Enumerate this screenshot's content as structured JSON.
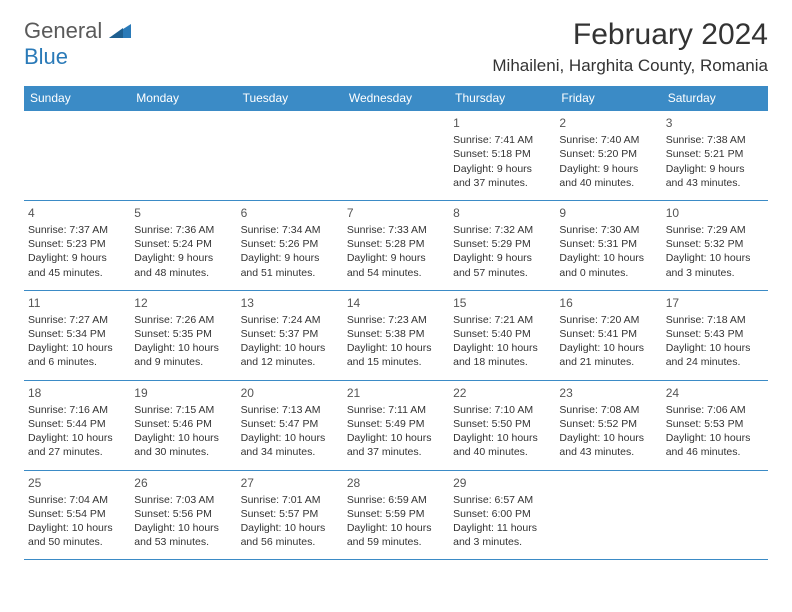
{
  "logo": {
    "word1": "General",
    "word2": "Blue"
  },
  "title": "February 2024",
  "location": "Mihaileni, Harghita County, Romania",
  "colors": {
    "header_bg": "#3b8bc6",
    "border": "#3b8bc6",
    "logo_gray": "#5a5a5a",
    "logo_blue": "#2a7ab8"
  },
  "weekdays": [
    "Sunday",
    "Monday",
    "Tuesday",
    "Wednesday",
    "Thursday",
    "Friday",
    "Saturday"
  ],
  "weeks": [
    [
      null,
      null,
      null,
      null,
      {
        "n": "1",
        "sr": "Sunrise: 7:41 AM",
        "ss": "Sunset: 5:18 PM",
        "d1": "Daylight: 9 hours",
        "d2": "and 37 minutes."
      },
      {
        "n": "2",
        "sr": "Sunrise: 7:40 AM",
        "ss": "Sunset: 5:20 PM",
        "d1": "Daylight: 9 hours",
        "d2": "and 40 minutes."
      },
      {
        "n": "3",
        "sr": "Sunrise: 7:38 AM",
        "ss": "Sunset: 5:21 PM",
        "d1": "Daylight: 9 hours",
        "d2": "and 43 minutes."
      }
    ],
    [
      {
        "n": "4",
        "sr": "Sunrise: 7:37 AM",
        "ss": "Sunset: 5:23 PM",
        "d1": "Daylight: 9 hours",
        "d2": "and 45 minutes."
      },
      {
        "n": "5",
        "sr": "Sunrise: 7:36 AM",
        "ss": "Sunset: 5:24 PM",
        "d1": "Daylight: 9 hours",
        "d2": "and 48 minutes."
      },
      {
        "n": "6",
        "sr": "Sunrise: 7:34 AM",
        "ss": "Sunset: 5:26 PM",
        "d1": "Daylight: 9 hours",
        "d2": "and 51 minutes."
      },
      {
        "n": "7",
        "sr": "Sunrise: 7:33 AM",
        "ss": "Sunset: 5:28 PM",
        "d1": "Daylight: 9 hours",
        "d2": "and 54 minutes."
      },
      {
        "n": "8",
        "sr": "Sunrise: 7:32 AM",
        "ss": "Sunset: 5:29 PM",
        "d1": "Daylight: 9 hours",
        "d2": "and 57 minutes."
      },
      {
        "n": "9",
        "sr": "Sunrise: 7:30 AM",
        "ss": "Sunset: 5:31 PM",
        "d1": "Daylight: 10 hours",
        "d2": "and 0 minutes."
      },
      {
        "n": "10",
        "sr": "Sunrise: 7:29 AM",
        "ss": "Sunset: 5:32 PM",
        "d1": "Daylight: 10 hours",
        "d2": "and 3 minutes."
      }
    ],
    [
      {
        "n": "11",
        "sr": "Sunrise: 7:27 AM",
        "ss": "Sunset: 5:34 PM",
        "d1": "Daylight: 10 hours",
        "d2": "and 6 minutes."
      },
      {
        "n": "12",
        "sr": "Sunrise: 7:26 AM",
        "ss": "Sunset: 5:35 PM",
        "d1": "Daylight: 10 hours",
        "d2": "and 9 minutes."
      },
      {
        "n": "13",
        "sr": "Sunrise: 7:24 AM",
        "ss": "Sunset: 5:37 PM",
        "d1": "Daylight: 10 hours",
        "d2": "and 12 minutes."
      },
      {
        "n": "14",
        "sr": "Sunrise: 7:23 AM",
        "ss": "Sunset: 5:38 PM",
        "d1": "Daylight: 10 hours",
        "d2": "and 15 minutes."
      },
      {
        "n": "15",
        "sr": "Sunrise: 7:21 AM",
        "ss": "Sunset: 5:40 PM",
        "d1": "Daylight: 10 hours",
        "d2": "and 18 minutes."
      },
      {
        "n": "16",
        "sr": "Sunrise: 7:20 AM",
        "ss": "Sunset: 5:41 PM",
        "d1": "Daylight: 10 hours",
        "d2": "and 21 minutes."
      },
      {
        "n": "17",
        "sr": "Sunrise: 7:18 AM",
        "ss": "Sunset: 5:43 PM",
        "d1": "Daylight: 10 hours",
        "d2": "and 24 minutes."
      }
    ],
    [
      {
        "n": "18",
        "sr": "Sunrise: 7:16 AM",
        "ss": "Sunset: 5:44 PM",
        "d1": "Daylight: 10 hours",
        "d2": "and 27 minutes."
      },
      {
        "n": "19",
        "sr": "Sunrise: 7:15 AM",
        "ss": "Sunset: 5:46 PM",
        "d1": "Daylight: 10 hours",
        "d2": "and 30 minutes."
      },
      {
        "n": "20",
        "sr": "Sunrise: 7:13 AM",
        "ss": "Sunset: 5:47 PM",
        "d1": "Daylight: 10 hours",
        "d2": "and 34 minutes."
      },
      {
        "n": "21",
        "sr": "Sunrise: 7:11 AM",
        "ss": "Sunset: 5:49 PM",
        "d1": "Daylight: 10 hours",
        "d2": "and 37 minutes."
      },
      {
        "n": "22",
        "sr": "Sunrise: 7:10 AM",
        "ss": "Sunset: 5:50 PM",
        "d1": "Daylight: 10 hours",
        "d2": "and 40 minutes."
      },
      {
        "n": "23",
        "sr": "Sunrise: 7:08 AM",
        "ss": "Sunset: 5:52 PM",
        "d1": "Daylight: 10 hours",
        "d2": "and 43 minutes."
      },
      {
        "n": "24",
        "sr": "Sunrise: 7:06 AM",
        "ss": "Sunset: 5:53 PM",
        "d1": "Daylight: 10 hours",
        "d2": "and 46 minutes."
      }
    ],
    [
      {
        "n": "25",
        "sr": "Sunrise: 7:04 AM",
        "ss": "Sunset: 5:54 PM",
        "d1": "Daylight: 10 hours",
        "d2": "and 50 minutes."
      },
      {
        "n": "26",
        "sr": "Sunrise: 7:03 AM",
        "ss": "Sunset: 5:56 PM",
        "d1": "Daylight: 10 hours",
        "d2": "and 53 minutes."
      },
      {
        "n": "27",
        "sr": "Sunrise: 7:01 AM",
        "ss": "Sunset: 5:57 PM",
        "d1": "Daylight: 10 hours",
        "d2": "and 56 minutes."
      },
      {
        "n": "28",
        "sr": "Sunrise: 6:59 AM",
        "ss": "Sunset: 5:59 PM",
        "d1": "Daylight: 10 hours",
        "d2": "and 59 minutes."
      },
      {
        "n": "29",
        "sr": "Sunrise: 6:57 AM",
        "ss": "Sunset: 6:00 PM",
        "d1": "Daylight: 11 hours",
        "d2": "and 3 minutes."
      },
      null,
      null
    ]
  ]
}
